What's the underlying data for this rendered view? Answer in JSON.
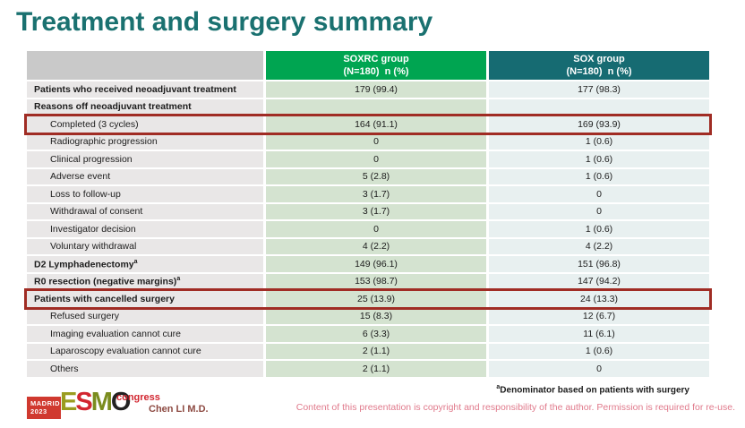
{
  "slide": {
    "title": "Treatment and surgery summary"
  },
  "table": {
    "header": {
      "label_col": "",
      "soxrc_line1": "SOXRC group",
      "soxrc_line2": "(N=180)  n (%)",
      "sox_line1": "SOX group",
      "sox_line2": "(N=180)  n (%)"
    },
    "rows": [
      {
        "label": "Patients who received neoadjuvant treatment",
        "bold": true,
        "indent": false,
        "soxrc": "179 (99.4)",
        "sox": "177 (98.3)",
        "highlight": false
      },
      {
        "label": "Reasons off neoadjuvant treatment",
        "bold": true,
        "indent": false,
        "soxrc": "",
        "sox": "",
        "highlight": false
      },
      {
        "label": "Completed (3 cycles)",
        "bold": false,
        "indent": true,
        "soxrc": "164 (91.1)",
        "sox": "169 (93.9)",
        "highlight": true
      },
      {
        "label": "Radiographic progression",
        "bold": false,
        "indent": true,
        "soxrc": "0",
        "sox": "1 (0.6)",
        "highlight": false
      },
      {
        "label": "Clinical progression",
        "bold": false,
        "indent": true,
        "soxrc": "0",
        "sox": "1 (0.6)",
        "highlight": false
      },
      {
        "label": "Adverse event",
        "bold": false,
        "indent": true,
        "soxrc": "5 (2.8)",
        "sox": "1 (0.6)",
        "highlight": false
      },
      {
        "label": "Loss to follow-up",
        "bold": false,
        "indent": true,
        "soxrc": "3 (1.7)",
        "sox": "0",
        "highlight": false
      },
      {
        "label": "Withdrawal of consent",
        "bold": false,
        "indent": true,
        "soxrc": "3 (1.7)",
        "sox": "0",
        "highlight": false
      },
      {
        "label": "Investigator decision",
        "bold": false,
        "indent": true,
        "soxrc": "0",
        "sox": "1 (0.6)",
        "highlight": false
      },
      {
        "label": "Voluntary withdrawal",
        "bold": false,
        "indent": true,
        "soxrc": "4 (2.2)",
        "sox": "4 (2.2)",
        "highlight": false
      },
      {
        "label": "D2 Lymphadenectomy",
        "sup": "a",
        "bold": true,
        "indent": false,
        "soxrc": "149 (96.1)",
        "sox": "151 (96.8)",
        "highlight": false
      },
      {
        "label": "R0 resection (negative margins)",
        "sup": "a",
        "bold": true,
        "indent": false,
        "soxrc": "153 (98.7)",
        "sox": "147 (94.2)",
        "highlight": false
      },
      {
        "label": "Patients with cancelled surgery",
        "bold": true,
        "indent": false,
        "soxrc": "25 (13.9)",
        "sox": "24 (13.3)",
        "highlight": true
      },
      {
        "label": "Refused surgery",
        "bold": false,
        "indent": true,
        "soxrc": "15 (8.3)",
        "sox": "12 (6.7)",
        "highlight": false
      },
      {
        "label": "Imaging evaluation cannot cure",
        "bold": false,
        "indent": true,
        "soxrc": "6 (3.3)",
        "sox": "11 (6.1)",
        "highlight": false
      },
      {
        "label": "Laparoscopy evaluation cannot cure",
        "bold": false,
        "indent": true,
        "soxrc": "2 (1.1)",
        "sox": "1 (0.6)",
        "highlight": false
      },
      {
        "label": "Others",
        "bold": false,
        "indent": true,
        "soxrc": "2 (1.1)",
        "sox": "0",
        "highlight": false
      }
    ]
  },
  "footnote": {
    "sup": "a",
    "text": "Denominator based on patients with surgery"
  },
  "footer": {
    "logo": {
      "madrid_line1": "MADRID",
      "madrid_line2": "2023",
      "letters": [
        "E",
        "S",
        "M",
        "O"
      ],
      "congress": "congress"
    },
    "author": "Chen LI M.D.",
    "copyright": "Content of this presentation is copyright and responsibility of the author. Permission is required for re-use."
  },
  "colors": {
    "title_teal": "#1a7170",
    "soxrc_header_green": "#00a551",
    "sox_header_teal": "#166b72",
    "label_header_gray": "#c9c9c9",
    "label_cell_gray": "#e9e7e7",
    "soxrc_cell_green": "#d4e3d0",
    "sox_cell_teal": "#e8f0f0",
    "highlight_border_red": "#a02c24",
    "esmo_red": "#d22630",
    "copyright_pink": "#e0798b",
    "author_maroon": "#8d4a42"
  }
}
